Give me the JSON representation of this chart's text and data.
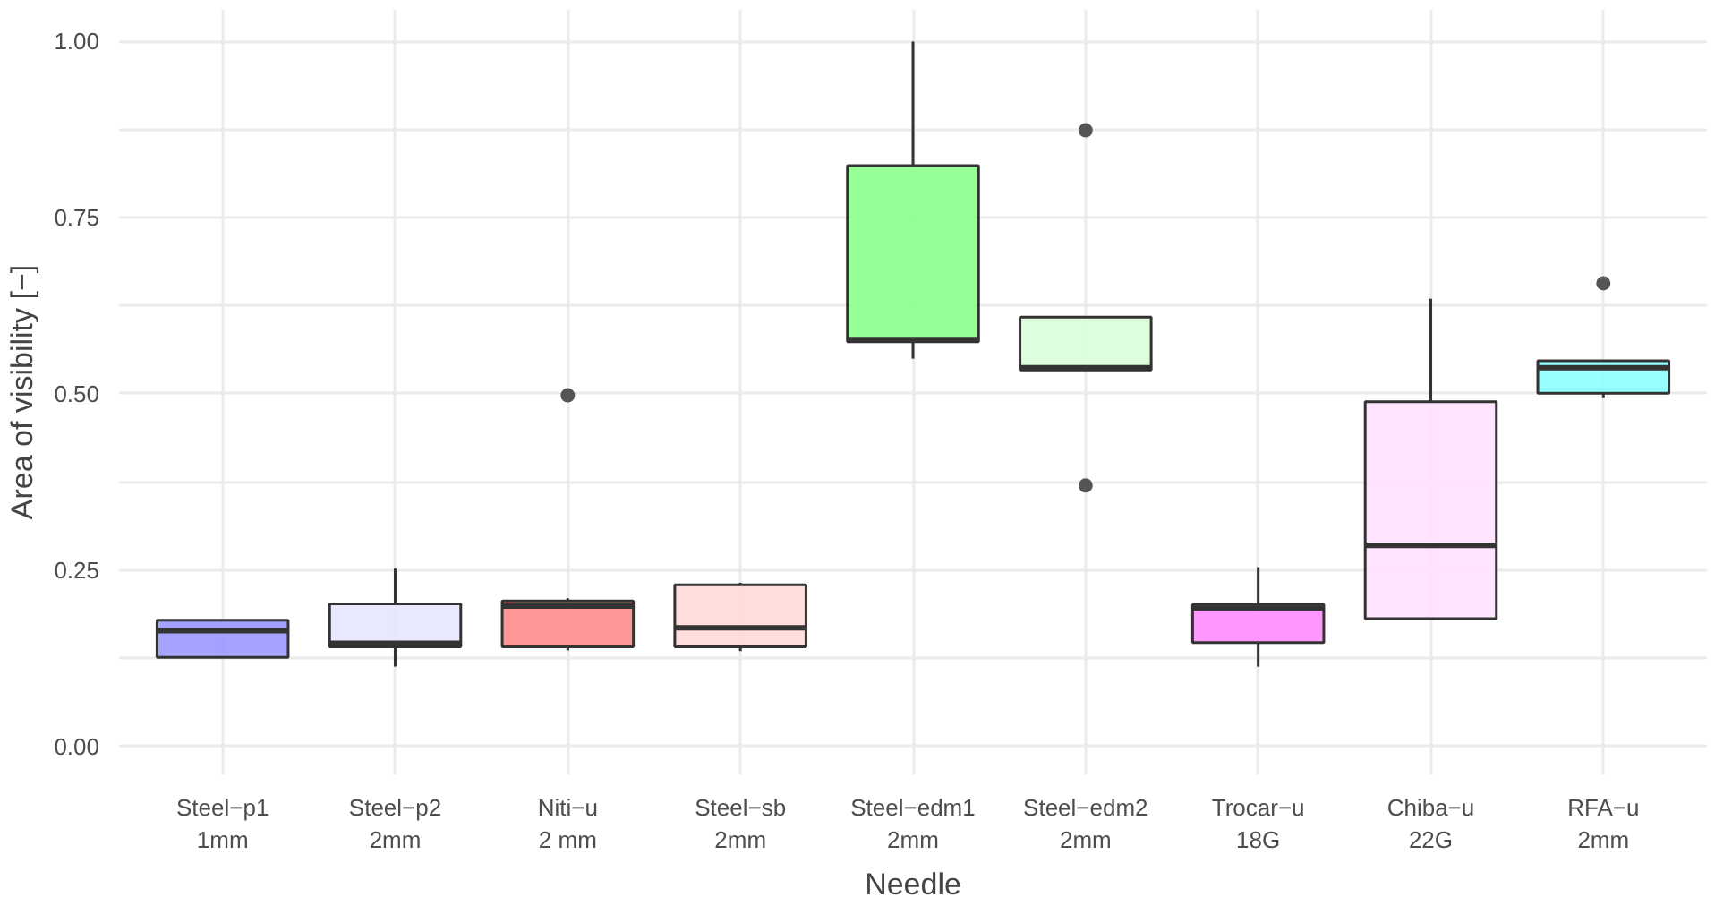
{
  "chart_data": {
    "type": "box",
    "xlabel": "Needle",
    "ylabel": "Area of visibility [−]",
    "categories": [
      "Steel−p1\n1mm",
      "Steel−p2\n2mm",
      "Niti−u\n2 mm",
      "Steel−sb\n2mm",
      "Steel−edm1\n2mm",
      "Steel−edm2\n2mm",
      "Trocar−u\n18G",
      "Chiba−u\n22G",
      "RFA−u\n2mm"
    ],
    "colors": [
      "#9999ff",
      "#e5e5ff",
      "#ff8c8c",
      "#ffd9d9",
      "#8cff8c",
      "#d9ffd9",
      "#ff8cff",
      "#ffe0ff",
      "#8cffff"
    ],
    "boxes": [
      {
        "low": 0.126,
        "q1": 0.126,
        "median": 0.164,
        "q3": 0.179,
        "high": 0.179
      },
      {
        "low": 0.113,
        "q1": 0.141,
        "median": 0.146,
        "q3": 0.202,
        "high": 0.252
      },
      {
        "low": 0.136,
        "q1": 0.141,
        "median": 0.199,
        "q3": 0.206,
        "high": 0.21,
        "outliers": [
          0.498
        ]
      },
      {
        "low": 0.135,
        "q1": 0.141,
        "median": 0.168,
        "q3": 0.229,
        "high": 0.232
      },
      {
        "low": 0.55,
        "q1": 0.574,
        "median": 0.577,
        "q3": 0.824,
        "high": 1.0
      },
      {
        "low": 0.534,
        "q1": 0.534,
        "median": 0.537,
        "q3": 0.609,
        "high": 0.609,
        "outliers": [
          0.874,
          0.37
        ]
      },
      {
        "low": 0.113,
        "q1": 0.147,
        "median": 0.196,
        "q3": 0.201,
        "high": 0.254
      },
      {
        "low": 0.181,
        "q1": 0.181,
        "median": 0.285,
        "q3": 0.489,
        "high": 0.635
      },
      {
        "low": 0.494,
        "q1": 0.501,
        "median": 0.537,
        "q3": 0.547,
        "high": 0.547,
        "outliers": [
          0.657
        ]
      }
    ],
    "ylim": [
      -0.04,
      1.045
    ],
    "yticks": [
      {
        "value": 0,
        "label": "0.00"
      },
      {
        "value": 0.125,
        "label": null
      },
      {
        "value": 0.25,
        "label": "0.25"
      },
      {
        "value": 0.375,
        "label": null
      },
      {
        "value": 0.5,
        "label": "0.50"
      },
      {
        "value": 0.625,
        "label": null
      },
      {
        "value": 0.75,
        "label": "0.75"
      },
      {
        "value": 0.875,
        "label": null
      },
      {
        "value": 1,
        "label": "1.00"
      }
    ],
    "grid": true
  }
}
